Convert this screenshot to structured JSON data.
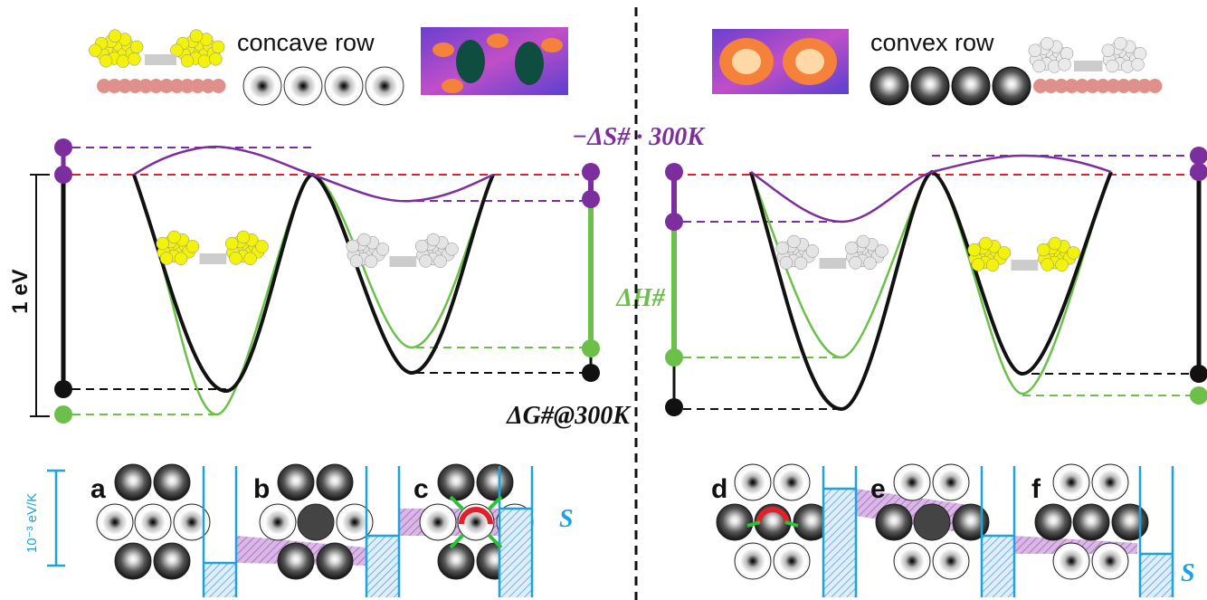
{
  "top": {
    "left_label": "concave row",
    "right_label": "convex row"
  },
  "energy": {
    "entropy_label": "−ΔS# · 300K",
    "enthalpy_label": "ΔH#",
    "free_energy_label": "ΔG#@300K",
    "scale_label": "1 eV"
  },
  "panels": {
    "labels": [
      "a",
      "b",
      "c",
      "d",
      "e",
      "f"
    ],
    "scale_label": "10⁻³ eV/K",
    "entropy_labels": [
      "S",
      "S"
    ]
  }
}
